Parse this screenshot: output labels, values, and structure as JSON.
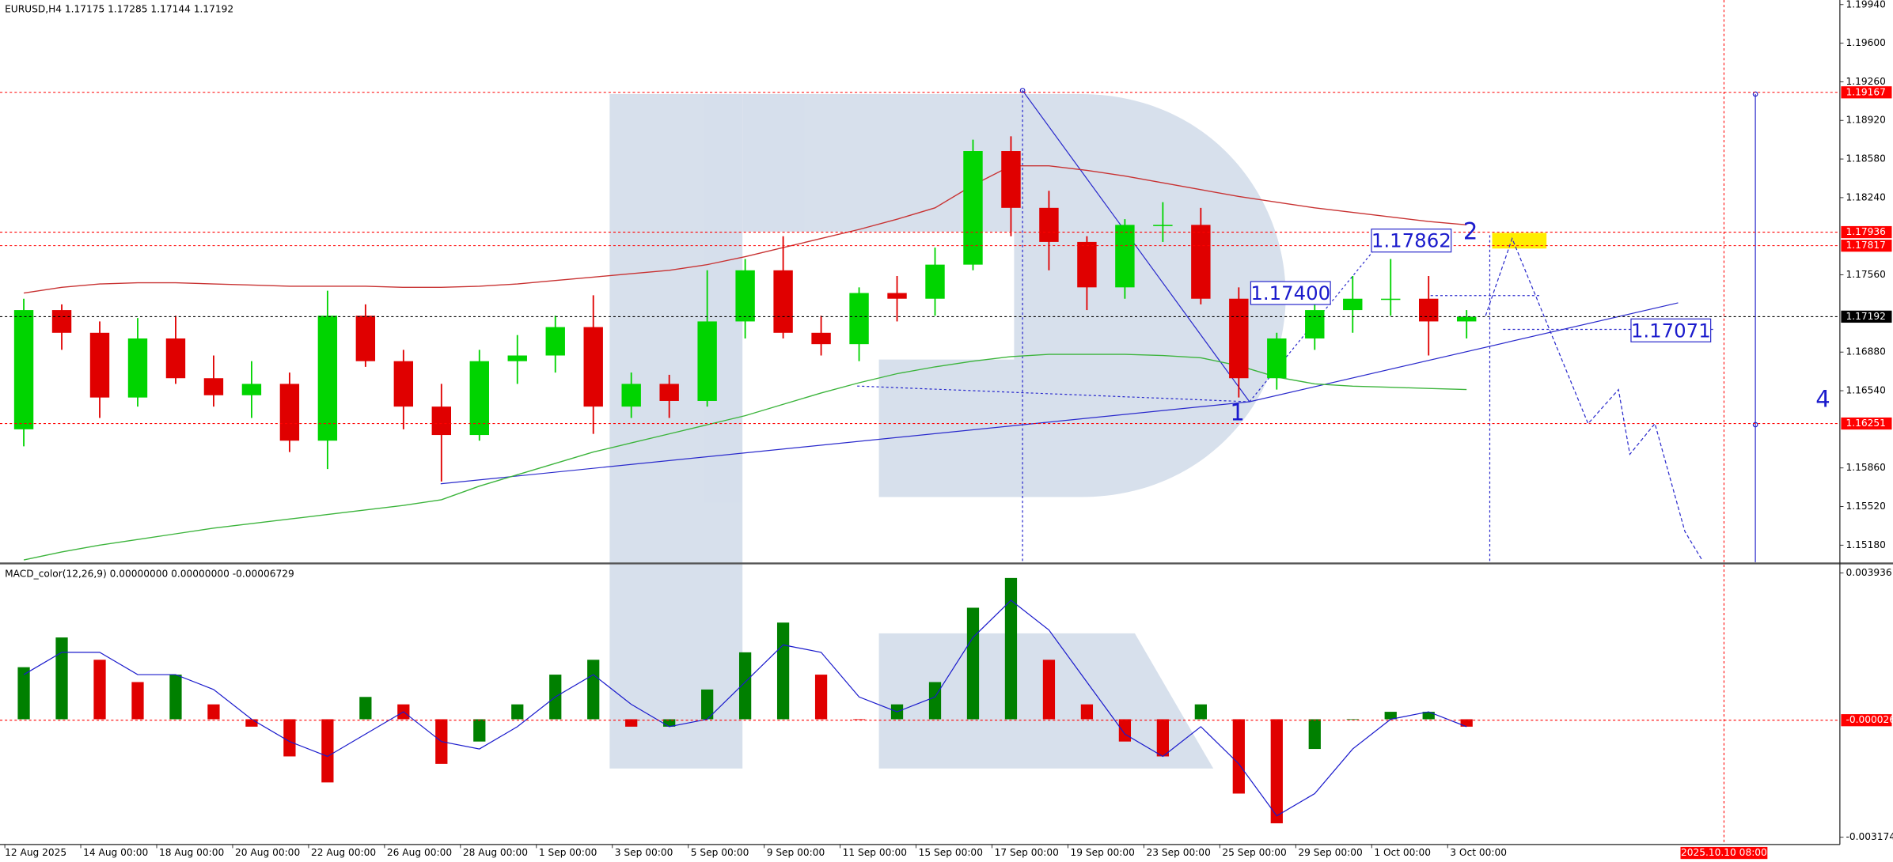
{
  "chart_data": [
    {
      "type": "candlestick",
      "title": "EURUSD,H4  1.17175 1.17285 1.17144 1.17192",
      "categories": [
        "12 Aug 2025",
        null,
        "14 Aug 00:00",
        null,
        "18 Aug 00:00",
        null,
        "20 Aug 00:00",
        null,
        "22 Aug 00:00",
        null,
        "26 Aug 00:00",
        null,
        "28 Aug 00:00",
        null,
        "1 Sep 00:00",
        null,
        "3 Sep 00:00",
        null,
        "5 Sep 00:00",
        null,
        "9 Sep 00:00",
        null,
        "11 Sep 00:00",
        null,
        "15 Sep 00:00",
        null,
        "17 Sep 00:00",
        null,
        "19 Sep 00:00",
        null,
        "23 Sep 00:00",
        null,
        "25 Sep 00:00",
        null,
        "29 Sep 00:00",
        null,
        "1 Oct 00:00",
        null,
        "3 Oct 00:00"
      ],
      "open": [
        1.162,
        1.1725,
        1.1705,
        1.1648,
        1.17,
        1.1665,
        1.165,
        1.166,
        1.161,
        1.172,
        1.168,
        1.164,
        1.1615,
        1.168,
        1.1685,
        1.171,
        1.164,
        1.166,
        1.1645,
        1.1715,
        1.176,
        1.1705,
        1.1695,
        1.174,
        1.1735,
        1.1765,
        1.1865,
        1.1815,
        1.1785,
        1.1745,
        1.18,
        1.18,
        1.1735,
        1.1665,
        1.17,
        1.1725,
        1.1735,
        1.1735,
        1.1715
      ],
      "high": [
        1.1735,
        1.173,
        1.1715,
        1.1718,
        1.172,
        1.1685,
        1.168,
        1.167,
        1.1742,
        1.173,
        1.169,
        1.166,
        1.169,
        1.1703,
        1.172,
        1.1738,
        1.167,
        1.1668,
        1.176,
        1.177,
        1.179,
        1.172,
        1.1745,
        1.1755,
        1.178,
        1.1875,
        1.1878,
        1.183,
        1.179,
        1.1805,
        1.182,
        1.1815,
        1.1745,
        1.1705,
        1.1735,
        1.1755,
        1.177,
        1.1755,
        1.1725
      ],
      "low": [
        1.1605,
        1.169,
        1.163,
        1.164,
        1.166,
        1.164,
        1.163,
        1.16,
        1.1585,
        1.1675,
        1.162,
        1.1574,
        1.161,
        1.166,
        1.167,
        1.1616,
        1.163,
        1.163,
        1.164,
        1.17,
        1.17,
        1.1685,
        1.168,
        1.1715,
        1.172,
        1.176,
        1.179,
        1.176,
        1.1725,
        1.1735,
        1.1785,
        1.173,
        1.1648,
        1.1655,
        1.169,
        1.1705,
        1.172,
        1.1685,
        1.17
      ],
      "close": [
        1.1725,
        1.1705,
        1.1648,
        1.17,
        1.1665,
        1.165,
        1.166,
        1.161,
        1.172,
        1.168,
        1.164,
        1.1615,
        1.168,
        1.1685,
        1.171,
        1.164,
        1.166,
        1.1645,
        1.1715,
        1.176,
        1.1705,
        1.1695,
        1.174,
        1.1735,
        1.1765,
        1.1865,
        1.1815,
        1.1785,
        1.1745,
        1.18,
        1.18,
        1.1735,
        1.1665,
        1.17,
        1.1725,
        1.1735,
        1.1735,
        1.1715,
        1.17192
      ],
      "up_color": "#00d400",
      "down_color": "#e00000",
      "lines": [
        {
          "color": "#c83232",
          "values": [
            1.174,
            1.1745,
            1.1748,
            1.1749,
            1.1749,
            1.1748,
            1.1747,
            1.1746,
            1.1746,
            1.1746,
            1.1745,
            1.1745,
            1.1746,
            1.1748,
            1.1751,
            1.1754,
            1.1757,
            1.176,
            1.1765,
            1.1772,
            1.178,
            1.1788,
            1.1796,
            1.1805,
            1.1815,
            1.1835,
            1.1852,
            1.1852,
            1.1848,
            1.1843,
            1.1837,
            1.1831,
            1.1825,
            1.182,
            1.1815,
            1.1811,
            1.1807,
            1.1803,
            1.18
          ]
        },
        {
          "color": "#3cb43c",
          "values": [
            1.1505,
            1.1512,
            1.1518,
            1.1523,
            1.1528,
            1.1533,
            1.1537,
            1.1541,
            1.1545,
            1.1549,
            1.1553,
            1.1558,
            1.157,
            1.158,
            1.159,
            1.16,
            1.1608,
            1.1616,
            1.1624,
            1.1632,
            1.1642,
            1.1652,
            1.1661,
            1.1669,
            1.1675,
            1.168,
            1.1684,
            1.1686,
            1.1686,
            1.1686,
            1.1685,
            1.1683,
            1.1676,
            1.1666,
            1.166,
            1.1658,
            1.1657,
            1.1656,
            1.1655
          ]
        }
      ],
      "ylim": [
        1.1503,
        1.1998
      ],
      "yticks": [
        {
          "value": 1.1994,
          "label": "1.19940"
        },
        {
          "value": 1.196,
          "label": "1.19600"
        },
        {
          "value": 1.1926,
          "label": "1.19260"
        },
        {
          "value": 1.1892,
          "label": "1.18920"
        },
        {
          "value": 1.1858,
          "label": "1.18580"
        },
        {
          "value": 1.1824,
          "label": "1.18240"
        },
        {
          "value": 1.1756,
          "label": "1.17560"
        },
        {
          "value": 1.1688,
          "label": "1.16880"
        },
        {
          "value": 1.1654,
          "label": "1.16540"
        },
        {
          "value": 1.1586,
          "label": "1.15860"
        },
        {
          "value": 1.1552,
          "label": "1.15520"
        },
        {
          "value": 1.1518,
          "label": "1.15180"
        }
      ],
      "levels": [
        {
          "value": 1.19167,
          "label": "1.19167",
          "color": "#ff0000"
        },
        {
          "value": 1.17936,
          "label": "1.17936",
          "color": "#ff0000"
        },
        {
          "value": 1.17817,
          "label": "1.17817",
          "color": "#ff0000"
        },
        {
          "value": 1.17192,
          "label": "1.17192",
          "color": "#000000"
        },
        {
          "value": 1.16251,
          "label": "1.16251",
          "color": "#ff0000"
        }
      ],
      "price_labels": [
        {
          "value": 1.17862,
          "label": "1.17862"
        },
        {
          "value": 1.174,
          "label": "1.17400"
        },
        {
          "value": 1.17071,
          "label": "1.17071"
        }
      ],
      "wave_labels": [
        "1",
        "2",
        "4"
      ],
      "forecast": {
        "color": "#2a2acc",
        "x": [
          38.5,
          39.2,
          41.2,
          42.0,
          42.3,
          42.96,
          43.75,
          44.2
        ],
        "values": [
          1.172,
          1.1788,
          1.1625,
          1.1655,
          1.1598,
          1.1625,
          1.153,
          1.1505
        ]
      },
      "cursor_label": "2025.10.10 08:00"
    },
    {
      "type": "macd",
      "title": "MACD_color(12,26,9) 0.00000000 0.00000000 -0.00006729",
      "values": [
        0.0014,
        0.0022,
        0.0016,
        0.001,
        0.0012,
        0.0004,
        -0.0002,
        -0.001,
        -0.0017,
        0.0006,
        0.0004,
        -0.0012,
        -0.0006,
        0.0004,
        0.0012,
        0.0016,
        -0.0002,
        -0.0002,
        0.0008,
        0.0018,
        0.0026,
        0.0012,
        0.0,
        0.0004,
        0.001,
        0.003,
        0.0038,
        0.0016,
        0.0004,
        -0.0006,
        -0.001,
        0.0004,
        -0.002,
        -0.0028,
        -0.0008,
        0.0,
        0.0002,
        0.0002,
        -0.0002
      ],
      "signal": [
        0.0012,
        0.0018,
        0.0018,
        0.0012,
        0.0012,
        0.0008,
        0.0,
        -0.0006,
        -0.001,
        -0.0004,
        0.0002,
        -0.0006,
        -0.0008,
        -0.0002,
        0.0006,
        0.0012,
        0.0004,
        -0.0002,
        0.0,
        0.001,
        0.002,
        0.0018,
        0.0006,
        0.0002,
        0.0006,
        0.0022,
        0.0032,
        0.0024,
        0.001,
        -0.0004,
        -0.001,
        -0.0002,
        -0.0012,
        -0.0026,
        -0.002,
        -0.0008,
        0.0,
        0.0002,
        -0.0002
      ],
      "up_color": "#008000",
      "down_color": "#e00000",
      "signal_color": "#1a1acc",
      "ylim": [
        -0.00337,
        0.00416
      ],
      "yticks": [
        0.0039361,
        -0.0031743
      ],
      "levels": [
        {
          "value": -2.6e-05,
          "color": "#ff0000"
        }
      ]
    }
  ]
}
